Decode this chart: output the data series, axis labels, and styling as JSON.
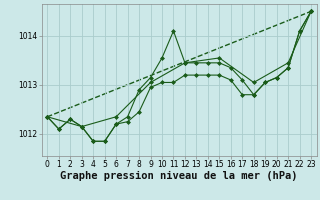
{
  "xlabel": "Graphe pression niveau de la mer (hPa)",
  "background_color": "#cce8e8",
  "grid_color": "#aacccc",
  "line_color": "#1a5c1a",
  "marker_color": "#1a5c1a",
  "xlim": [
    -0.5,
    23.5
  ],
  "ylim": [
    1011.55,
    1014.65
  ],
  "yticks": [
    1012,
    1013,
    1014
  ],
  "xticks": [
    0,
    1,
    2,
    3,
    4,
    5,
    6,
    7,
    8,
    9,
    10,
    11,
    12,
    13,
    14,
    15,
    16,
    17,
    18,
    19,
    20,
    21,
    22,
    23
  ],
  "series": [
    {
      "x": [
        0,
        23
      ],
      "y": [
        1012.35,
        1014.5
      ],
      "marker": null,
      "markersize": 0,
      "linewidth": 1.0,
      "zorder": 1
    },
    {
      "x": [
        0,
        1,
        2,
        3,
        4,
        5,
        6,
        7,
        8,
        9,
        10,
        11,
        12,
        13,
        14,
        15,
        16,
        17,
        18,
        19,
        20,
        21,
        22,
        23
      ],
      "y": [
        1012.35,
        1012.1,
        1012.3,
        1012.15,
        1011.85,
        1011.85,
        1012.2,
        1012.25,
        1012.45,
        1012.95,
        1013.05,
        1013.05,
        1013.2,
        1013.2,
        1013.2,
        1013.2,
        1013.1,
        1012.8,
        1012.8,
        1013.05,
        1013.15,
        1013.35,
        1014.1,
        1014.5
      ],
      "marker": "D",
      "markersize": 2,
      "linewidth": 0.8,
      "zorder": 2
    },
    {
      "x": [
        0,
        1,
        2,
        3,
        4,
        5,
        6,
        7,
        8,
        9,
        10,
        11,
        12,
        13,
        14,
        15,
        16,
        17,
        18,
        19,
        20,
        21,
        22,
        23
      ],
      "y": [
        1012.35,
        1012.1,
        1012.3,
        1012.15,
        1011.85,
        1011.85,
        1012.2,
        1012.35,
        1012.9,
        1013.15,
        1013.55,
        1014.1,
        1013.45,
        1013.45,
        1013.45,
        1013.45,
        1013.35,
        1013.1,
        1012.8,
        1013.05,
        1013.15,
        1013.35,
        1014.1,
        1014.5
      ],
      "marker": "D",
      "markersize": 2,
      "linewidth": 0.8,
      "zorder": 3
    },
    {
      "x": [
        0,
        3,
        6,
        9,
        12,
        15,
        18,
        21,
        23
      ],
      "y": [
        1012.35,
        1012.15,
        1012.35,
        1013.05,
        1013.45,
        1013.55,
        1013.05,
        1013.45,
        1014.5
      ],
      "marker": "D",
      "markersize": 2,
      "linewidth": 0.8,
      "zorder": 4
    }
  ],
  "xlabel_fontsize": 7.5,
  "tick_fontsize": 5.5
}
